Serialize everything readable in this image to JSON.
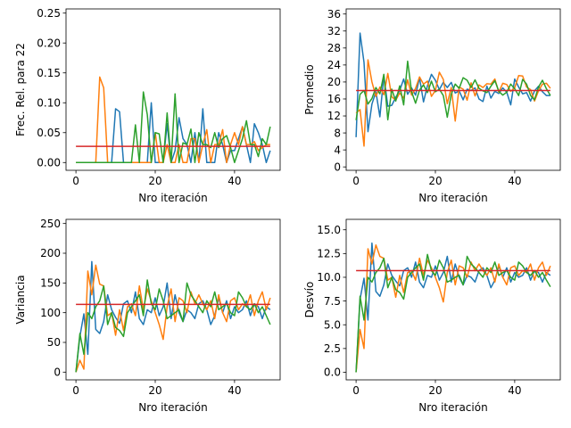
{
  "colors": {
    "series1": "#1f77b4",
    "series2": "#ff7f0e",
    "series3": "#2ca02c",
    "reference": "#d62728"
  },
  "chart_data": [
    {
      "type": "line",
      "xlabel": "Nro iteración",
      "ylabel": "Frec. Rel. para 22",
      "xlim": [
        -2.5,
        51.5
      ],
      "ylim": [
        -0.013,
        0.257
      ],
      "xticks": [
        0,
        20,
        40
      ],
      "yticks": [
        0.0,
        0.05,
        0.1,
        0.15,
        0.2,
        0.25
      ],
      "ytick_labels": [
        "0.00",
        "0.05",
        "0.10",
        "0.15",
        "0.20",
        "0.25"
      ],
      "reference_line": 0.027,
      "series": [
        {
          "values": [
            0,
            0,
            0,
            0,
            0,
            0,
            0,
            0,
            0,
            0,
            0.09,
            0.085,
            0,
            0,
            0,
            0,
            0,
            0,
            0,
            0.1,
            0,
            0,
            0,
            0.065,
            0,
            0.02,
            0.075,
            0.04,
            0.03,
            0,
            0.05,
            0,
            0.09,
            0,
            0,
            0,
            0.05,
            0.03,
            0,
            0.02,
            0.02,
            0.04,
            0.06,
            0.03,
            0,
            0.065,
            0.05,
            0.03,
            0,
            0.02
          ]
        },
        {
          "values": [
            0,
            0,
            0,
            0,
            0,
            0,
            0.143,
            0.125,
            0,
            0,
            0,
            0,
            0,
            0,
            0,
            0,
            0,
            0,
            0,
            0,
            0.05,
            0,
            0,
            0.03,
            0,
            0,
            0.03,
            0,
            0,
            0.04,
            0.04,
            0,
            0.03,
            0.055,
            0,
            0.03,
            0.03,
            0.055,
            0,
            0.03,
            0.05,
            0.03,
            0.06,
            0.03,
            0.03,
            0.035,
            0.02,
            0.025,
            0.03,
            0.03
          ]
        },
        {
          "values": [
            0,
            0,
            0,
            0,
            0,
            0,
            0,
            0,
            0,
            0,
            0,
            0,
            0,
            0,
            0,
            0.063,
            0,
            0.118,
            0.08,
            0,
            0.05,
            0.048,
            0,
            0.083,
            0,
            0.115,
            0,
            0.033,
            0.03,
            0.056,
            0,
            0.05,
            0.03,
            0.03,
            0.025,
            0.05,
            0.025,
            0.04,
            0.045,
            0.025,
            0,
            0.02,
            0.04,
            0.07,
            0.03,
            0.03,
            0.01,
            0.04,
            0.03,
            0.06
          ]
        }
      ]
    },
    {
      "type": "line",
      "xlabel": "Nro iteración",
      "ylabel": "Promedio",
      "xlim": [
        -2.5,
        51.5
      ],
      "ylim": [
        -0.8,
        37.2
      ],
      "xticks": [
        0,
        20,
        40
      ],
      "yticks": [
        0,
        4,
        8,
        12,
        16,
        20,
        24,
        28,
        32,
        36
      ],
      "ytick_labels": [
        "0",
        "4",
        "8",
        "12",
        "16",
        "20",
        "24",
        "28",
        "32",
        "36"
      ],
      "reference_line": 18,
      "series": [
        {
          "values": [
            7,
            31.5,
            24.6,
            8.3,
            14.8,
            17.7,
            11.8,
            21.5,
            14.3,
            14.5,
            16.4,
            18,
            20.7,
            17.1,
            18.6,
            16.9,
            21,
            15.3,
            19.1,
            21.8,
            20.4,
            18.2,
            19.9,
            18.7,
            19.9,
            17.4,
            17.9,
            15.8,
            18.3,
            18,
            18.6,
            16,
            15.4,
            19,
            16.2,
            17.8,
            17.3,
            18.6,
            17.6,
            14.6,
            20.7,
            18.8,
            17.2,
            17.5,
            15.5,
            17.9,
            19,
            17.7,
            16.8,
            16.8
          ]
        },
        {
          "values": [
            12.7,
            13.5,
            4.9,
            25.2,
            20,
            16.6,
            18.8,
            17,
            22,
            16.5,
            15.7,
            17.4,
            16.2,
            20.5,
            16.9,
            18.5,
            21.2,
            19.5,
            20.2,
            16.6,
            18,
            22.3,
            20.6,
            14.9,
            18.7,
            10.8,
            18.8,
            18.3,
            15.7,
            19.8,
            16.7,
            19.3,
            18.7,
            19.6,
            19.5,
            20.7,
            17.6,
            19.7,
            19.4,
            17.8,
            18.6,
            21.5,
            21.4,
            18.8,
            18.2,
            15.5,
            17.9,
            19.5,
            19.7,
            18.5
          ]
        },
        {
          "values": [
            11,
            17.1,
            18,
            14.8,
            16.1,
            18.7,
            17.2,
            21.8,
            11.1,
            18.3,
            15.5,
            19.1,
            14.6,
            24.9,
            17.7,
            15,
            18.1,
            19.3,
            17.5,
            20.2,
            17.7,
            18.3,
            16.8,
            11.7,
            17.1,
            19.5,
            18.5,
            21,
            20.4,
            18.7,
            20.5,
            18.5,
            17.9,
            17.5,
            19,
            20.3,
            17.8,
            16.9,
            17.6,
            19.5,
            18.4,
            16.8,
            20.6,
            19.5,
            16.8,
            15.8,
            18.8,
            20.4,
            18.4,
            16.8
          ]
        }
      ]
    },
    {
      "type": "line",
      "xlabel": "Nro iteración",
      "ylabel": "Variancia",
      "xlim": [
        -2.5,
        51.5
      ],
      "ylim": [
        -13,
        257
      ],
      "xticks": [
        0,
        20,
        40
      ],
      "yticks": [
        0,
        50,
        100,
        150,
        200,
        250
      ],
      "ytick_labels": [
        "0",
        "50",
        "100",
        "150",
        "200",
        "250"
      ],
      "reference_line": 114,
      "series": [
        {
          "values": [
            0,
            60,
            98,
            30,
            186,
            72,
            65,
            85,
            130,
            105,
            92,
            82,
            115,
            120,
            100,
            135,
            90,
            80,
            105,
            100,
            125,
            95,
            110,
            150,
            90,
            130,
            100,
            85,
            105,
            100,
            90,
            115,
            120,
            105,
            80,
            95,
            125,
            100,
            120,
            90,
            110,
            100,
            105,
            120,
            95,
            115,
            110,
            90,
            110,
            105
          ]
        },
        {
          "values": [
            0,
            20,
            5,
            170,
            130,
            180,
            148,
            145,
            95,
            100,
            62,
            105,
            70,
            110,
            115,
            95,
            145,
            105,
            140,
            120,
            100,
            80,
            55,
            110,
            140,
            85,
            125,
            120,
            100,
            135,
            115,
            130,
            115,
            105,
            120,
            90,
            130,
            100,
            85,
            120,
            125,
            105,
            115,
            110,
            130,
            95,
            120,
            135,
            105,
            125
          ]
        },
        {
          "values": [
            0,
            65,
            30,
            100,
            90,
            110,
            120,
            145,
            80,
            100,
            75,
            70,
            60,
            100,
            110,
            120,
            130,
            95,
            155,
            115,
            105,
            140,
            120,
            90,
            95,
            100,
            105,
            85,
            150,
            130,
            120,
            110,
            100,
            120,
            110,
            135,
            105,
            110,
            115,
            100,
            95,
            135,
            125,
            110,
            105,
            115,
            100,
            110,
            95,
            80
          ]
        }
      ]
    },
    {
      "type": "line",
      "xlabel": "Nro iteración",
      "ylabel": "Desvío",
      "xlim": [
        -2.5,
        51.5
      ],
      "ylim": [
        -0.8,
        16.1
      ],
      "xticks": [
        0,
        20,
        40
      ],
      "yticks": [
        0.0,
        2.5,
        5.0,
        7.5,
        10.0,
        12.5,
        15.0
      ],
      "ytick_labels": [
        "0.0",
        "2.5",
        "5.0",
        "7.5",
        "10.0",
        "12.5",
        "15.0"
      ],
      "reference_line": 10.7,
      "series": [
        {
          "values": [
            0,
            7.7,
            9.9,
            5.5,
            13.6,
            8.5,
            8,
            9.2,
            11.4,
            10.2,
            9.6,
            9.1,
            10.7,
            11,
            10,
            11.6,
            9.5,
            8.9,
            10.2,
            10,
            11.2,
            9.7,
            10.5,
            12.2,
            9.5,
            11.4,
            10,
            9.2,
            10.2,
            10,
            9.5,
            10.7,
            11,
            10.2,
            8.9,
            9.7,
            11.2,
            10,
            11,
            9.5,
            10.5,
            10,
            10.2,
            11,
            9.7,
            10.7,
            10.5,
            9.5,
            10.5,
            10.2
          ]
        },
        {
          "values": [
            0,
            4.5,
            2.5,
            13,
            11.4,
            13.4,
            12.2,
            12,
            9.7,
            10,
            7.9,
            10.2,
            8.4,
            10.5,
            10.7,
            9.7,
            12,
            10.2,
            11.8,
            11,
            10,
            8.9,
            7.4,
            10.5,
            11.8,
            9.2,
            11.2,
            11,
            10,
            11.6,
            10.7,
            11.4,
            10.7,
            10.2,
            11,
            9.5,
            11.4,
            10,
            9.2,
            11,
            11.2,
            10.2,
            10.7,
            10.5,
            11.4,
            9.7,
            11,
            11.6,
            10.2,
            11.2
          ]
        },
        {
          "values": [
            0,
            8,
            5.5,
            10,
            9.5,
            10.5,
            11,
            12,
            8.9,
            10,
            8.7,
            8.4,
            7.7,
            10,
            10.5,
            11,
            11.4,
            9.7,
            12.4,
            10.7,
            10.2,
            11.8,
            11,
            9.5,
            9.7,
            10,
            10.2,
            9.2,
            12.2,
            11.4,
            11,
            10.5,
            10,
            11,
            10.5,
            11.6,
            10.2,
            10.5,
            10.7,
            10,
            9.7,
            11.6,
            11.2,
            10.5,
            10.2,
            10.7,
            10,
            10.5,
            9.7,
            9
          ]
        }
      ]
    }
  ]
}
